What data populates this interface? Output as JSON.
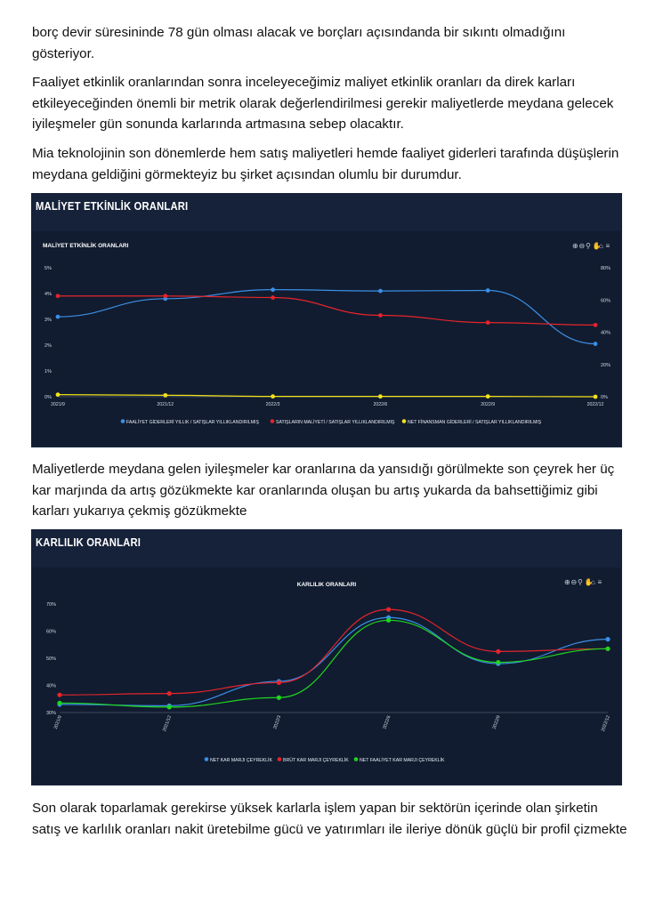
{
  "paragraphs": [
    "borç devir süresininde 78 gün olması alacak ve borçları açısındanda bir sıkıntı olmadığını gösteriyor.",
    "Faaliyet etkinlik oranlarından sonra inceleyeceğimiz maliyet etkinlik oranları da direk karları etkileyeceğinden önemli bir metrik olarak değerlendirilmesi gerekir maliyetlerde meydana gelecek iyileşmeler gün sonunda karlarında artmasına sebep olacaktır.",
    "Mia teknolojinin son dönemlerde hem satış maliyetleri hemde faaliyet giderleri tarafında düşüşlerin meydana geldiğini görmekteyiz bu şirket açısından olumlu bir durumdur.",
    "Maliyetlerde meydana gelen iyileşmeler kar oranlarına da yansıdığı görülmekte son çeyrek her üç kar marjında da artış gözükmekte kar oranlarında oluşan bu artış yukarda da bahsettiğimiz gibi karları yukarıya çekmiş gözükmekte",
    "Son olarak toparlamak gerekirse yüksek karlarla işlem yapan bir sektörün içerinde olan şirketin satış ve karlılık oranları nakit üretebilme gücü ve yatırımları ile ileriye dönük güçlü bir profil çizmekte"
  ],
  "panels": {
    "maliyet_title": "MALİYET ETKİNLİK ORANLARI",
    "karlilik_title": "KARLILIK ORANLARI"
  },
  "toolbar_icons": [
    "zoom-in-icon",
    "zoom-out-icon",
    "magnifier-icon",
    "pan-hand-icon",
    "home-icon",
    "menu-icon"
  ],
  "colors": {
    "blue": "#3b8fe6",
    "red": "#e6242b",
    "yellow": "#f2e21a",
    "green": "#1fd61f"
  },
  "chart_data": [
    {
      "type": "line",
      "title": "MALİYET ETKİNLİK ORANLARI",
      "categories": [
        "2021/9",
        "2021/12",
        "2022/3",
        "2022/6",
        "2022/9",
        "2022/12"
      ],
      "y_left_ticks": [
        "0%",
        "1%",
        "2%",
        "3%",
        "4%",
        "5%"
      ],
      "y_right_ticks": [
        "0%",
        "20%",
        "40%",
        "60%",
        "80%"
      ],
      "ylim_left": [
        0,
        5
      ],
      "ylim_right": [
        0,
        80
      ],
      "series": [
        {
          "name": "FAALİYET GİDERLERİ YILLIK / SATIŞLAR YILLIKLANDIRILMIŞ",
          "axis": "left",
          "color": "blue",
          "values": [
            3.1,
            3.8,
            4.15,
            4.1,
            4.12,
            2.05
          ]
        },
        {
          "name": "SATIŞLARIN MALİYETİ / SATIŞLAR YILLIKLANDIRILMIŞ",
          "axis": "right",
          "color": "red",
          "values": [
            62.5,
            62.5,
            61.5,
            50.5,
            46.0,
            44.5
          ]
        },
        {
          "name": "NET FİNANSMAN GİDERLERİ / SATIŞLAR YILLIKLANDIRILMIŞ",
          "axis": "right",
          "color": "yellow",
          "values": [
            1.3,
            0.9,
            0.2,
            0.2,
            0.2,
            0.0
          ]
        }
      ]
    },
    {
      "type": "line",
      "title": "KARLILIK ORANLARI",
      "categories": [
        "2021/9",
        "2021/12",
        "2022/3",
        "2022/6",
        "2022/9",
        "2022/12"
      ],
      "y_ticks": [
        "30%",
        "40%",
        "50%",
        "60%",
        "70%"
      ],
      "ylim": [
        30,
        70
      ],
      "series": [
        {
          "name": "NET KAR MARJI ÇEYREKLİK",
          "color": "blue",
          "values": [
            33.0,
            32.5,
            41.5,
            65.0,
            48.0,
            57.0
          ]
        },
        {
          "name": "BRÜT KAR MARJI ÇEYREKLİK",
          "color": "red",
          "values": [
            36.5,
            37.0,
            41.0,
            68.0,
            52.5,
            53.5
          ]
        },
        {
          "name": "NET FAALİYET KAR MARJI ÇEYREKLİK",
          "color": "green",
          "values": [
            33.5,
            32.0,
            35.5,
            64.0,
            48.5,
            53.5
          ]
        }
      ]
    }
  ]
}
